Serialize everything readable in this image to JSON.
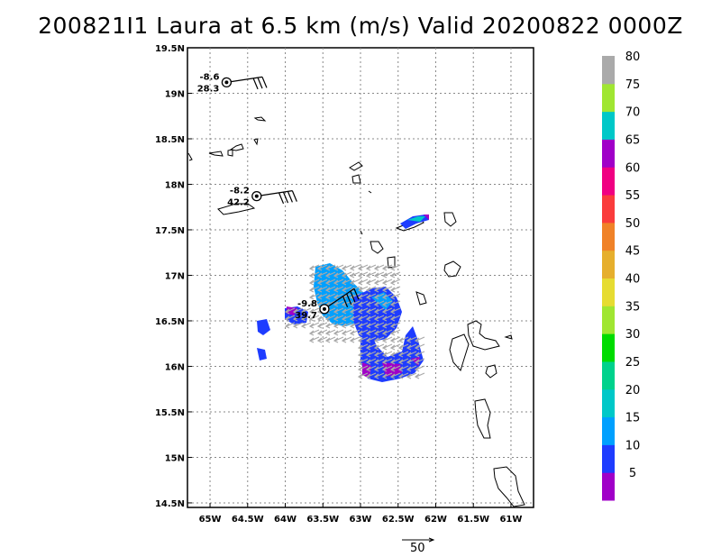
{
  "title": "200821I1 Laura at 6.5 km (m/s) Valid 20200822 0000Z",
  "lon_labels": [
    "65W",
    "64.5W",
    "64W",
    "63.5W",
    "63W",
    "62.5W",
    "62W",
    "61.5W",
    "61W"
  ],
  "lon_values": [
    -65,
    -64.5,
    -64,
    -63.5,
    -63,
    -62.5,
    -62,
    -61.5,
    -61
  ],
  "lat_labels": [
    "19.5N",
    "19N",
    "18.5N",
    "18N",
    "17.5N",
    "17N",
    "16.5N",
    "16N",
    "15.5N",
    "15N",
    "14.5N"
  ],
  "lat_values": [
    19.5,
    19,
    18.5,
    18,
    17.5,
    17,
    16.5,
    16,
    15.5,
    15,
    14.5
  ],
  "map_extent": {
    "lon_min": -65.3,
    "lon_max": -60.7,
    "lat_min": 14.45,
    "lat_max": 19.5
  },
  "colorbar": {
    "labels": [
      "5",
      "10",
      "15",
      "20",
      "25",
      "30",
      "35",
      "40",
      "45",
      "50",
      "55",
      "60",
      "65",
      "70",
      "75",
      "80"
    ],
    "colors": [
      "#a000c8",
      "#1e3cff",
      "#00a0ff",
      "#00c8c8",
      "#00d28c",
      "#00dc00",
      "#a0e632",
      "#e6dc32",
      "#e6af2d",
      "#f08228",
      "#fa3c3c",
      "#f00082",
      "#a000c8",
      "#00c8c8",
      "#a0e632",
      "#aaaaaa"
    ]
  },
  "stations": [
    {
      "id": "s1",
      "lon": -64.78,
      "lat": 19.12,
      "top": "-8.6",
      "bottom": "28.3",
      "barbs": 3
    },
    {
      "id": "s2",
      "lon": -64.38,
      "lat": 17.87,
      "top": "-8.2",
      "bottom": "42.2",
      "barbs": 4
    },
    {
      "id": "s3",
      "lon": -63.48,
      "lat": 16.63,
      "top": "-9.8",
      "bottom": "39.7",
      "barbs": 4
    }
  ],
  "reference_vector": {
    "label": "50"
  }
}
